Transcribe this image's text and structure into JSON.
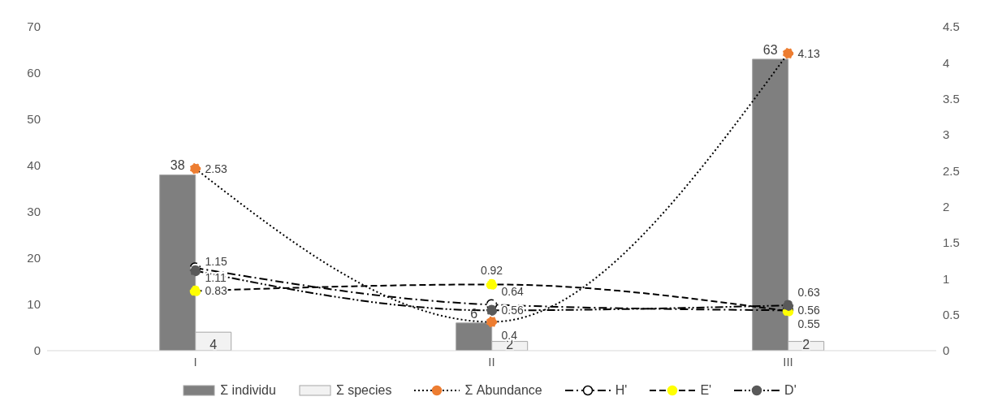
{
  "chart_data": {
    "type": "bar",
    "categories": [
      "I",
      "II",
      "III"
    ],
    "series": [
      {
        "name": "Σ individu",
        "color": "#7f7f7f",
        "values": [
          38,
          6,
          63
        ]
      },
      {
        "name": "Σ species",
        "color": "#f2f2f2",
        "values": [
          4,
          2,
          2
        ]
      },
      {
        "name": "Σ Abundance",
        "type": "line",
        "axis": "y2",
        "color": "#ed7d31",
        "line_style": "dotted",
        "marker": "circle",
        "values": [
          2.53,
          0.4,
          4.13
        ]
      },
      {
        "name": "H'",
        "type": "line",
        "axis": "y2",
        "color": "#ffffff",
        "line_style": "dashdot",
        "marker": "circle",
        "values": [
          1.15,
          0.64,
          0.56
        ]
      },
      {
        "name": "E'",
        "type": "line",
        "axis": "y2",
        "color": "#ffff00",
        "line_style": "dashed",
        "marker": "circle",
        "values": [
          0.83,
          0.92,
          0.55
        ]
      },
      {
        "name": "D'",
        "type": "line",
        "axis": "y2",
        "color": "#595959",
        "line_style": "dashdotdot",
        "marker": "circle",
        "values": [
          1.11,
          0.56,
          0.63
        ]
      }
    ],
    "ylim": [
      0,
      70
    ],
    "yticks": [
      0,
      10,
      20,
      30,
      40,
      50,
      60,
      70
    ],
    "y2lim": [
      0,
      4.5
    ],
    "y2ticks": [
      0,
      0.5,
      1,
      1.5,
      2,
      2.5,
      3,
      3.5,
      4,
      4.5
    ],
    "data_labels": true,
    "legend": "bottom"
  }
}
